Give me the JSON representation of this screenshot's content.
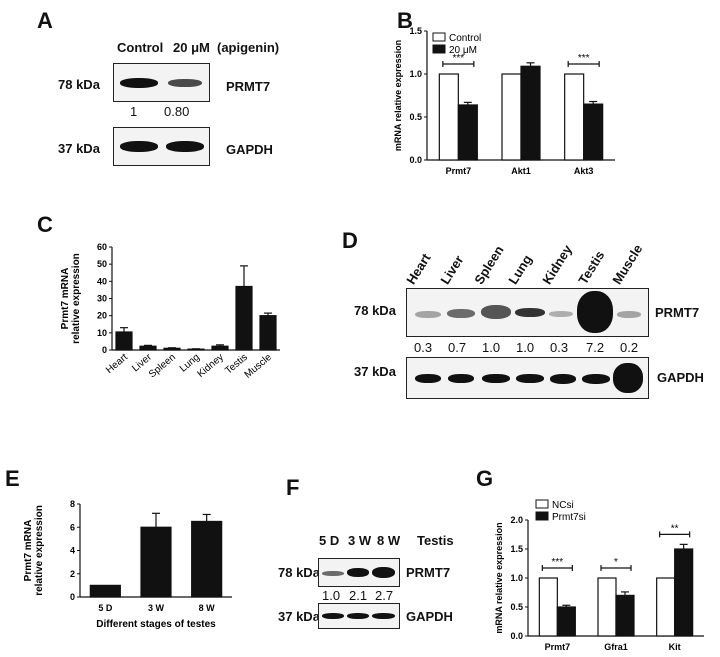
{
  "panels": {
    "A": {
      "letter": "A",
      "header": {
        "control": "Control",
        "treatment": "20 μM",
        "compound": "(apigenin)"
      },
      "rows": [
        {
          "kda": "78 kDa",
          "protein": "PRMT7",
          "ratios": [
            "1",
            "0.80"
          ]
        },
        {
          "kda": "37 kDa",
          "protein": "GAPDH"
        }
      ]
    },
    "B": {
      "letter": "B"
    },
    "C": {
      "letter": "C"
    },
    "D": {
      "letter": "D",
      "tissues": [
        "Heart",
        "Liver",
        "Spleen",
        "Lung",
        "Kidney",
        "Testis",
        "Muscle"
      ],
      "rows": [
        {
          "kda": "78 kDa",
          "protein": "PRMT7",
          "ratios": [
            "0.3",
            "0.7",
            "1.0",
            "1.0",
            "0.3",
            "7.2",
            "0.2"
          ]
        },
        {
          "kda": "37 kDa",
          "protein": "GAPDH"
        }
      ]
    },
    "E": {
      "letter": "E"
    },
    "F": {
      "letter": "F",
      "header": {
        "lanes": [
          "5 D",
          "3 W",
          "8 W"
        ],
        "tissue": "Testis"
      },
      "rows": [
        {
          "kda": "78 kDa",
          "protein": "PRMT7",
          "ratios": [
            "1.0",
            "2.1",
            "2.7"
          ]
        },
        {
          "kda": "37 kDa",
          "protein": "GAPDH"
        }
      ]
    },
    "G": {
      "letter": "G"
    }
  },
  "chart_data": [
    {
      "id": "B",
      "type": "bar",
      "categories": [
        "Prmt7",
        "Akt1",
        "Akt3"
      ],
      "series": [
        {
          "name": "Control",
          "values": [
            1.0,
            1.0,
            1.0
          ],
          "errors": [
            0,
            0,
            0
          ],
          "color": "#ffffff"
        },
        {
          "name": "20 μM",
          "values": [
            0.64,
            1.09,
            0.65
          ],
          "errors": [
            0.03,
            0.04,
            0.03
          ],
          "color": "#111111"
        }
      ],
      "ylabel": "mRNA relative expression",
      "ylim": [
        0,
        1.5
      ],
      "yticks": [
        "0.0",
        "0.5",
        "1.0",
        "1.5"
      ],
      "significance": [
        {
          "category": "Prmt7",
          "label": "***"
        },
        {
          "category": "Akt3",
          "label": "***"
        }
      ],
      "legend": "top-left"
    },
    {
      "id": "C",
      "type": "bar",
      "categories": [
        "Heart",
        "Liver",
        "Spleen",
        "Lung",
        "Kidney",
        "Testis",
        "Muscle"
      ],
      "values": [
        10.5,
        2.2,
        1.0,
        0.5,
        2.2,
        37.0,
        20.0
      ],
      "errors": [
        2.5,
        0.5,
        0.3,
        0.2,
        0.8,
        12.0,
        1.5
      ],
      "ylabel_lines": [
        "Prmt7 mRNA",
        "relative expression"
      ],
      "ylim": [
        0,
        60
      ],
      "yticks": [
        "0",
        "10",
        "20",
        "30",
        "40",
        "50",
        "60"
      ]
    },
    {
      "id": "E",
      "type": "bar",
      "categories": [
        "5 D",
        "3 W",
        "8 W"
      ],
      "values": [
        1.0,
        6.0,
        6.5
      ],
      "errors": [
        0,
        1.2,
        0.6
      ],
      "ylabel_lines": [
        "Prmt7 mRNA",
        "relative expression"
      ],
      "xlabel": "Different stages of testes",
      "ylim": [
        0,
        8
      ],
      "yticks": [
        "0",
        "2",
        "4",
        "6",
        "8"
      ]
    },
    {
      "id": "G",
      "type": "bar",
      "categories": [
        "Prmt7",
        "Gfra1",
        "Kit"
      ],
      "series": [
        {
          "name": "NCsi",
          "values": [
            1.0,
            1.0,
            1.0
          ],
          "errors": [
            0,
            0,
            0
          ],
          "color": "#ffffff"
        },
        {
          "name": "Prmt7si",
          "values": [
            0.5,
            0.7,
            1.5
          ],
          "errors": [
            0.03,
            0.06,
            0.08
          ],
          "color": "#111111"
        }
      ],
      "ylabel": "mRNA relative expression",
      "ylim": [
        0,
        2.0
      ],
      "yticks": [
        "0.0",
        "0.5",
        "1.0",
        "1.5",
        "2.0"
      ],
      "significance": [
        {
          "category": "Prmt7",
          "label": "***"
        },
        {
          "category": "Gfra1",
          "label": "*"
        },
        {
          "category": "Kit",
          "label": "**"
        }
      ],
      "legend": "top-left"
    }
  ]
}
